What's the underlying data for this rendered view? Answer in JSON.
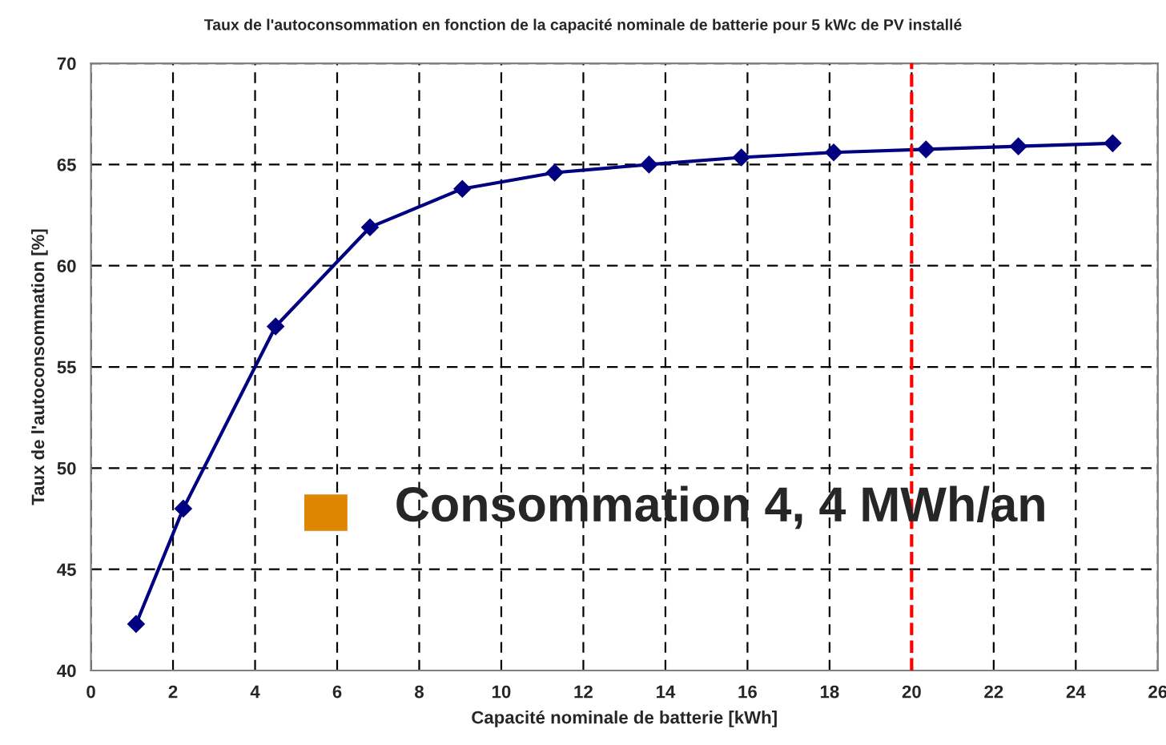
{
  "chart_data": {
    "type": "line",
    "title": "Taux de l'autoconsommation en fonction de la capacité nominale de batterie pour 5 kWc de PV installé",
    "xlabel": "Capacité nominale de batterie [kWh]",
    "ylabel": "Taux de l'autoconsommation [%]",
    "x": [
      1.1,
      2.25,
      4.5,
      6.8,
      9.05,
      11.3,
      13.6,
      15.85,
      18.1,
      20.35,
      22.6,
      24.9
    ],
    "series": [
      {
        "color": "#000080",
        "values": [
          42.3,
          48.0,
          57.0,
          61.9,
          63.8,
          64.6,
          65.0,
          65.35,
          65.6,
          65.75,
          65.9,
          66.05
        ]
      }
    ],
    "xlim": [
      0,
      26
    ],
    "xticks": [
      0,
      2,
      4,
      6,
      8,
      10,
      12,
      14,
      16,
      18,
      20,
      22,
      24,
      26
    ],
    "ylim": [
      40,
      70
    ],
    "yticks": [
      40,
      45,
      50,
      55,
      60,
      65,
      70
    ],
    "grid": true,
    "marker": "diamond",
    "line_style": "solid",
    "ref_lines": [
      {
        "axis": "x",
        "value": 20,
        "color": "#ff0000",
        "line_style": "dashed"
      }
    ],
    "annotations": [
      "Consommation 4, 4 MWh/an"
    ]
  }
}
